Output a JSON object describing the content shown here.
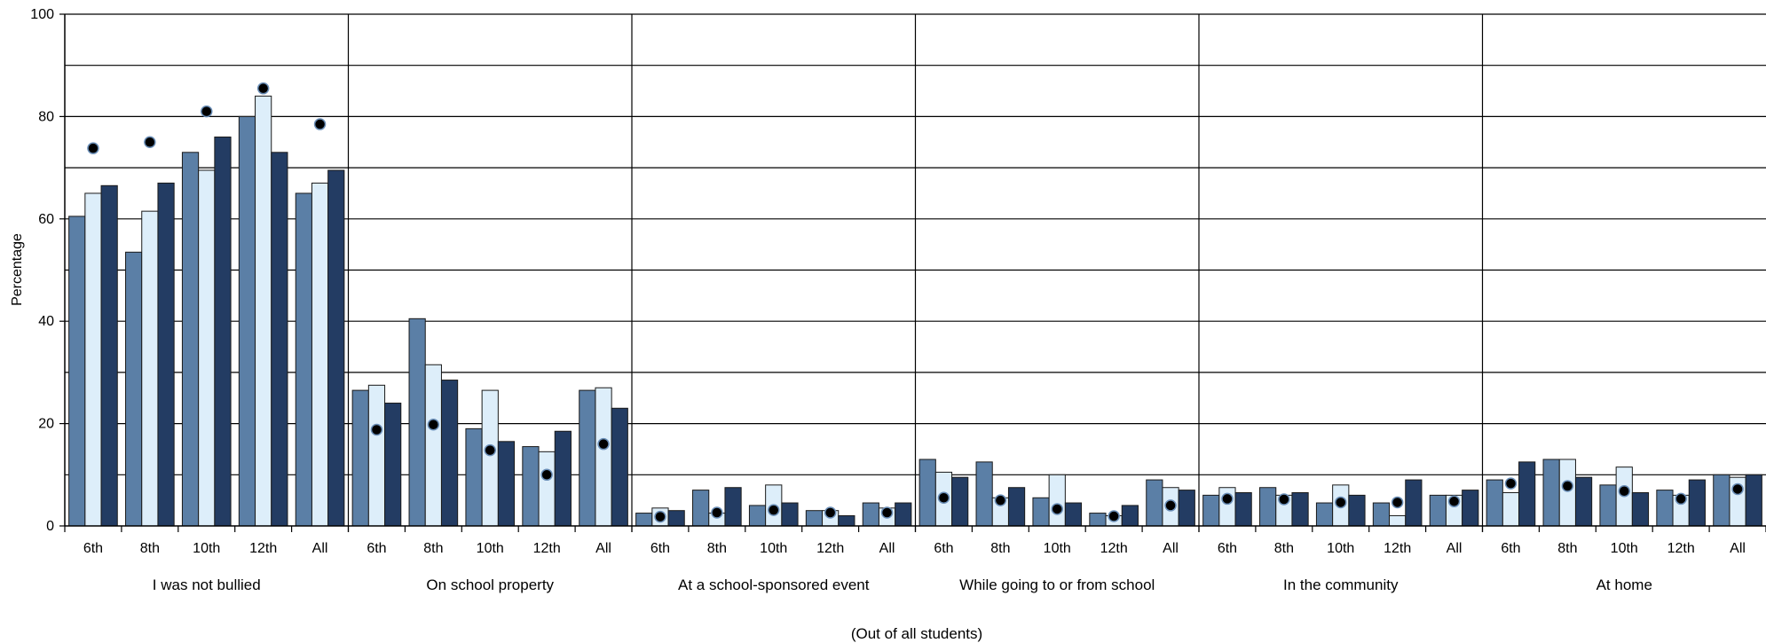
{
  "chart_data": {
    "type": "bar",
    "ylabel": "Percentage",
    "ylim": [
      0,
      100
    ],
    "yticks": [
      0,
      20,
      40,
      60,
      80,
      100
    ],
    "grid": true,
    "footnote": "(Out of all students)",
    "subcategories": [
      "6th",
      "8th",
      "10th",
      "12th",
      "All"
    ],
    "series_colors": [
      "#5b7fa6",
      "#ddeefa",
      "#233c63"
    ],
    "dot_color": "#000000",
    "groups": [
      {
        "label": "I was not bullied",
        "bars": [
          [
            60.5,
            65,
            66.5
          ],
          [
            53.5,
            61.5,
            67
          ],
          [
            73,
            69.5,
            76
          ],
          [
            80,
            84,
            73
          ],
          [
            65,
            67,
            69.5
          ]
        ],
        "dots": [
          73.8,
          75,
          81,
          85.5,
          78.5
        ]
      },
      {
        "label": "On school property",
        "bars": [
          [
            26.5,
            27.5,
            24
          ],
          [
            40.5,
            31.5,
            28.5
          ],
          [
            19,
            26.5,
            16.5
          ],
          [
            15.5,
            14.5,
            18.5
          ],
          [
            26.5,
            27,
            23
          ]
        ],
        "dots": [
          18.8,
          19.8,
          14.8,
          10,
          16
        ]
      },
      {
        "label": "At a school-sponsored event",
        "bars": [
          [
            2.5,
            3.5,
            3
          ],
          [
            7,
            2.5,
            7.5
          ],
          [
            4,
            8,
            4.5
          ],
          [
            3,
            3,
            2
          ],
          [
            4.5,
            3.5,
            4.5
          ]
        ],
        "dots": [
          1.8,
          2.6,
          3.1,
          2.6,
          2.6
        ]
      },
      {
        "label": "While going to or from school",
        "bars": [
          [
            13,
            10.5,
            9.5
          ],
          [
            12.5,
            5.5,
            7.5
          ],
          [
            5.5,
            10,
            4.5
          ],
          [
            2.5,
            2,
            4
          ],
          [
            9,
            7.5,
            7
          ]
        ],
        "dots": [
          5.5,
          5,
          3.3,
          1.9,
          4
        ]
      },
      {
        "label": "In the community",
        "bars": [
          [
            6,
            7.5,
            6.5
          ],
          [
            7.5,
            6,
            6.5
          ],
          [
            4.5,
            8,
            6
          ],
          [
            4.5,
            2,
            9
          ],
          [
            6,
            6,
            7
          ]
        ],
        "dots": [
          5.3,
          5.2,
          4.6,
          4.6,
          4.8
        ]
      },
      {
        "label": "At home",
        "bars": [
          [
            9,
            6.5,
            12.5
          ],
          [
            13,
            13,
            9.5
          ],
          [
            8,
            11.5,
            6.5
          ],
          [
            7,
            6,
            9
          ],
          [
            10,
            9.5,
            10
          ]
        ],
        "dots": [
          8.3,
          7.8,
          6.8,
          5.3,
          7.2
        ]
      }
    ]
  }
}
